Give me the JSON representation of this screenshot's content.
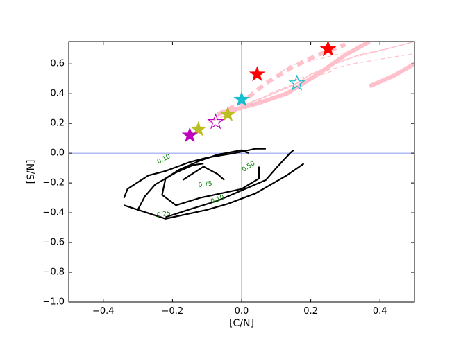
{
  "chart_data": {
    "type": "line",
    "title": "",
    "xlabel": "[C/N]",
    "ylabel": "[S/N]",
    "xlim": [
      -0.5,
      0.5
    ],
    "ylim": [
      -1.0,
      0.75
    ],
    "xticks": [
      -0.4,
      -0.2,
      0.0,
      0.2,
      0.4
    ],
    "xtick_labels": [
      "−0.4",
      "−0.2",
      "0.0",
      "0.2",
      "0.4"
    ],
    "yticks": [
      -1.0,
      -0.8,
      -0.6,
      -0.4,
      -0.2,
      0.0,
      0.2,
      0.4,
      0.6
    ],
    "ytick_labels": [
      "−1.0",
      "−0.8",
      "−0.6",
      "−0.4",
      "−0.2",
      "0.0",
      "0.2",
      "0.4",
      "0.6"
    ],
    "grid": false,
    "reference_lines": {
      "x": 0.0,
      "y": 0.0,
      "color": "#6677ee"
    },
    "contours": [
      {
        "level": "0.10",
        "label_color": "#008000",
        "label_at": [
          -0.225,
          -0.04
        ],
        "points": [
          [
            -0.34,
            -0.3
          ],
          [
            -0.33,
            -0.24
          ],
          [
            -0.27,
            -0.15
          ],
          [
            -0.22,
            -0.12
          ],
          [
            -0.15,
            -0.06
          ],
          [
            -0.1,
            -0.03
          ],
          [
            -0.02,
            0.0
          ],
          [
            0.04,
            0.03
          ],
          [
            0.07,
            0.03
          ]
        ]
      },
      {
        "level": "0.10",
        "label_color": "#008000",
        "label_at": [
          -0.07,
          -0.31
        ],
        "points": [
          [
            -0.34,
            -0.35
          ],
          [
            -0.22,
            -0.44
          ],
          [
            -0.1,
            -0.38
          ],
          [
            -0.04,
            -0.34
          ],
          [
            0.04,
            -0.27
          ],
          [
            0.13,
            -0.15
          ],
          [
            0.18,
            -0.07
          ]
        ]
      },
      {
        "level": "0.25",
        "label_color": "#008000",
        "label_at": [
          -0.225,
          -0.41
        ],
        "points": [
          [
            -0.3,
            -0.38
          ],
          [
            -0.28,
            -0.29
          ],
          [
            -0.25,
            -0.21
          ],
          [
            -0.19,
            -0.13
          ],
          [
            -0.14,
            -0.08
          ],
          [
            -0.11,
            -0.07
          ]
        ]
      },
      {
        "level": "0.25",
        "label_color": "#008000",
        "label_at": [
          -0.225,
          -0.41
        ],
        "points": [
          [
            -0.22,
            -0.43
          ],
          [
            -0.14,
            -0.37
          ],
          [
            -0.07,
            -0.32
          ],
          [
            0.0,
            -0.25
          ],
          [
            0.07,
            -0.18
          ],
          [
            0.1,
            -0.1
          ],
          [
            0.14,
            0.0
          ],
          [
            0.15,
            0.02
          ]
        ]
      },
      {
        "level": "0.50",
        "label_color": "#008000",
        "label_at": [
          0.02,
          -0.09
        ],
        "points": [
          [
            -0.19,
            -0.35
          ],
          [
            -0.23,
            -0.28
          ],
          [
            -0.22,
            -0.17
          ],
          [
            -0.18,
            -0.11
          ],
          [
            -0.12,
            -0.05
          ],
          [
            -0.07,
            -0.01
          ],
          [
            0.0,
            0.02
          ],
          [
            0.02,
            0.0
          ]
        ]
      },
      {
        "level": "0.50",
        "label_color": "#008000",
        "label_at": [
          0.02,
          -0.09
        ],
        "points": [
          [
            -0.19,
            -0.35
          ],
          [
            -0.12,
            -0.3
          ],
          [
            -0.06,
            -0.27
          ],
          [
            0.0,
            -0.24
          ],
          [
            0.05,
            -0.17
          ],
          [
            0.05,
            -0.09
          ]
        ]
      },
      {
        "level": "0.75",
        "label_color": "#008000",
        "label_at": [
          -0.105,
          -0.21
        ],
        "points": [
          [
            -0.17,
            -0.18
          ],
          [
            -0.11,
            -0.09
          ],
          [
            -0.07,
            -0.14
          ],
          [
            -0.05,
            -0.18
          ]
        ]
      }
    ],
    "tracks": [
      {
        "name": "",
        "color": "#ffc0cb",
        "style": "dashed",
        "width": 6,
        "points": [
          [
            -0.07,
            0.26
          ],
          [
            0.0,
            0.34
          ],
          [
            0.07,
            0.47
          ],
          [
            0.14,
            0.57
          ],
          [
            0.22,
            0.66
          ],
          [
            0.3,
            0.73
          ]
        ]
      },
      {
        "name": "",
        "color": "#ffc0cb",
        "style": "solid",
        "width": 6,
        "points": [
          [
            -0.06,
            0.27
          ],
          [
            0.04,
            0.33
          ],
          [
            0.13,
            0.4
          ],
          [
            0.22,
            0.53
          ],
          [
            0.3,
            0.66
          ],
          [
            0.37,
            0.75
          ]
        ]
      },
      {
        "name": "",
        "color": "#ffc0cb",
        "style": "solid",
        "width": 6,
        "points": [
          [
            0.37,
            0.45
          ],
          [
            0.44,
            0.52
          ],
          [
            0.5,
            0.6
          ]
        ]
      },
      {
        "name": "",
        "color": "#ffc0cb",
        "style": "solid",
        "width": 1.5,
        "points": [
          [
            -0.05,
            0.27
          ],
          [
            0.06,
            0.37
          ],
          [
            0.16,
            0.47
          ],
          [
            0.2,
            0.53
          ],
          [
            0.27,
            0.6
          ],
          [
            0.34,
            0.66
          ],
          [
            0.42,
            0.7
          ],
          [
            0.5,
            0.75
          ]
        ]
      },
      {
        "name": "",
        "color": "#ffc0cb",
        "style": "dotted",
        "width": 1.2,
        "points": [
          [
            -0.09,
            0.22
          ],
          [
            0.03,
            0.35
          ],
          [
            0.13,
            0.43
          ],
          [
            0.21,
            0.53
          ],
          [
            0.3,
            0.63
          ],
          [
            0.39,
            0.68
          ],
          [
            0.5,
            0.75
          ]
        ]
      },
      {
        "name": "",
        "color": "#ffc0cb",
        "style": "dashed",
        "width": 1.2,
        "points": [
          [
            0.15,
            0.49
          ],
          [
            0.22,
            0.54
          ],
          [
            0.32,
            0.6
          ],
          [
            0.5,
            0.67
          ]
        ]
      },
      {
        "name": "",
        "color": "#ffc0cb",
        "style": "dashed",
        "width": 1.2,
        "points": [
          [
            0.1,
            0.52
          ],
          [
            0.14,
            0.59
          ],
          [
            0.22,
            0.63
          ],
          [
            0.32,
            0.69
          ]
        ]
      },
      {
        "name": "",
        "color": "#ffc0cb",
        "style": "dashed",
        "width": 1.2,
        "points": [
          [
            -0.1,
            0.2
          ],
          [
            -0.04,
            0.26
          ],
          [
            0.02,
            0.31
          ],
          [
            0.08,
            0.4
          ],
          [
            0.18,
            0.49
          ],
          [
            0.26,
            0.55
          ]
        ]
      }
    ],
    "markers": [
      {
        "x": 0.25,
        "y": 0.7,
        "color": "#ff0000",
        "filled": true
      },
      {
        "x": 0.25,
        "y": 0.7,
        "color": "#ff0000",
        "filled": false
      },
      {
        "x": 0.045,
        "y": 0.53,
        "color": "#ff0000",
        "filled": true
      },
      {
        "x": 0.16,
        "y": 0.47,
        "color": "#17becf",
        "filled": false
      },
      {
        "x": 0.0,
        "y": 0.36,
        "color": "#17becf",
        "filled": true
      },
      {
        "x": -0.04,
        "y": 0.26,
        "color": "#bcbd22",
        "filled": true
      },
      {
        "x": -0.125,
        "y": 0.16,
        "color": "#bcbd22",
        "filled": true
      },
      {
        "x": -0.075,
        "y": 0.21,
        "color": "#bf00bf",
        "filled": false
      },
      {
        "x": -0.15,
        "y": 0.12,
        "color": "#bf00bf",
        "filled": true
      }
    ]
  }
}
